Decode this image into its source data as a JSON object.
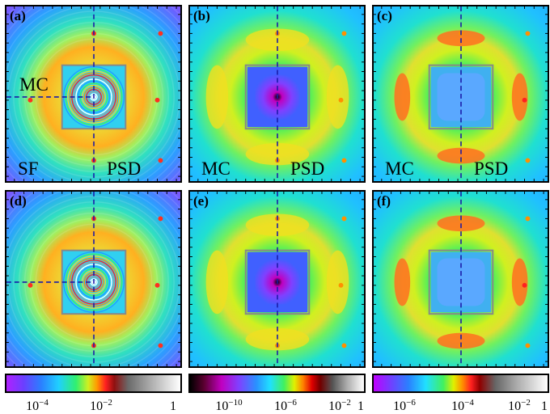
{
  "figure": {
    "panels": [
      {
        "id": "a",
        "label": "(a)",
        "kind": "sf",
        "texts": {
          "mc": "MC",
          "left": "SF",
          "right": "PSD"
        }
      },
      {
        "id": "b",
        "label": "(b)",
        "kind": "mc",
        "texts": {
          "left": "MC",
          "right": "PSD"
        }
      },
      {
        "id": "c",
        "label": "(c)",
        "kind": "mc2",
        "texts": {
          "left": "MC",
          "right": "PSD"
        }
      },
      {
        "id": "d",
        "label": "(d)",
        "kind": "sf",
        "texts": {}
      },
      {
        "id": "e",
        "label": "(e)",
        "kind": "mc",
        "texts": {}
      },
      {
        "id": "f",
        "label": "(f)",
        "kind": "mc2",
        "texts": {}
      }
    ],
    "colorbars": [
      {
        "id": "cb1",
        "gradient": "rainbow-gray",
        "ticks": [
          {
            "base": "10",
            "exp": "−4"
          },
          {
            "base": "10",
            "exp": "−2"
          },
          {
            "base": "1",
            "exp": ""
          }
        ]
      },
      {
        "id": "cb2",
        "gradient": "dark-rainbow-gray",
        "ticks": [
          {
            "base": "10",
            "exp": "−10"
          },
          {
            "base": "10",
            "exp": "−6"
          },
          {
            "base": "10",
            "exp": "−2"
          },
          {
            "base": "1",
            "exp": ""
          }
        ]
      },
      {
        "id": "cb3",
        "gradient": "rainbow-gray",
        "ticks": [
          {
            "base": "10",
            "exp": "−6"
          },
          {
            "base": "10",
            "exp": "−4"
          },
          {
            "base": "10",
            "exp": "−2"
          },
          {
            "base": "1",
            "exp": ""
          }
        ]
      }
    ],
    "colors": {
      "dashed_line": "#1a1aa8",
      "box_outline": "#888888",
      "frame": "#000000"
    }
  }
}
